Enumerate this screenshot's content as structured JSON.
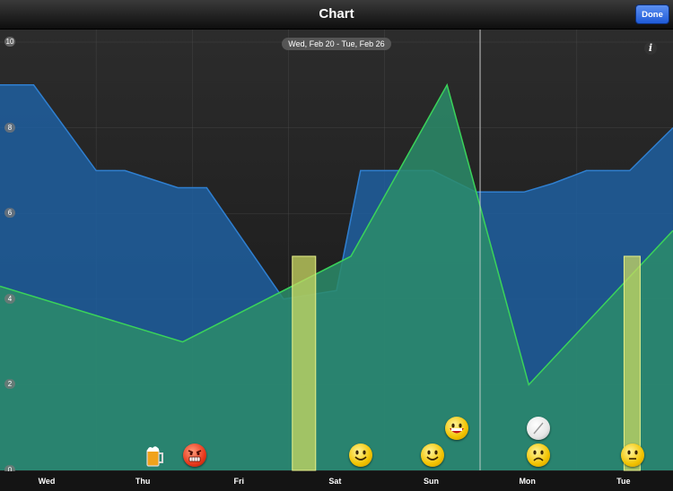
{
  "nav": {
    "title": "Chart",
    "done_label": "Done"
  },
  "chart": {
    "date_range": "Wed, Feb 20 - Tue, Feb 26",
    "info_label": "i",
    "y_ticks": [
      "0",
      "2",
      "4",
      "6",
      "8",
      "10"
    ],
    "x_ticks": [
      "Wed",
      "Thu",
      "Fri",
      "Sat",
      "Sun",
      "Mon",
      "Tue"
    ]
  },
  "icons": {
    "beer": "beer-mug-icon",
    "angry": "angry-face-icon",
    "smile": "smiley-face-icon",
    "grin": "grinning-face-icon",
    "pill": "pill-icon",
    "sad": "sad-face-icon",
    "neutral": "neutral-face-icon"
  },
  "colors": {
    "blue_series": "#1e5fa0",
    "green_series": "#2c8c6a",
    "bar": "#c9d862"
  },
  "chart_data": {
    "type": "area",
    "ylim": [
      0,
      10
    ],
    "categories": [
      "Wed",
      "Thu",
      "Fri",
      "Sat",
      "Sun",
      "Mon",
      "Tue"
    ],
    "series": [
      {
        "x": [
          0,
          0.35,
          1.0,
          1.3,
          1.85,
          2.15,
          2.95,
          3.5,
          3.75,
          4.5,
          4.95,
          5.0,
          5.45,
          5.75,
          6.1,
          6.55,
          7.0
        ],
        "values": [
          9.0,
          9.0,
          7.0,
          7.0,
          6.6,
          6.6,
          4.0,
          4.2,
          7.0,
          7.0,
          6.5,
          6.5,
          6.5,
          6.7,
          7.0,
          7.0,
          8.0
        ]
      },
      {
        "x": [
          0,
          1.9,
          3.65,
          4.65,
          5.5,
          7.0
        ],
        "values": [
          4.3,
          3.0,
          5.0,
          9.0,
          2.0,
          5.6
        ]
      },
      {
        "type": "bar",
        "x": [
          3.05,
          6.5
        ],
        "values": [
          5.0,
          5.0
        ]
      }
    ],
    "markers": [
      {
        "day": "Thu",
        "icon": "beer-mug-icon"
      },
      {
        "day": "Thu",
        "icon": "angry-face-icon"
      },
      {
        "day": "Sat",
        "icon": "smiley-face-icon"
      },
      {
        "day": "Sun",
        "icon": "smiley-face-icon"
      },
      {
        "day": "Sun",
        "icon": "grinning-face-icon"
      },
      {
        "day": "Mon",
        "icon": "pill-icon"
      },
      {
        "day": "Mon",
        "icon": "sad-face-icon"
      },
      {
        "day": "Tue",
        "icon": "neutral-face-icon"
      }
    ]
  }
}
